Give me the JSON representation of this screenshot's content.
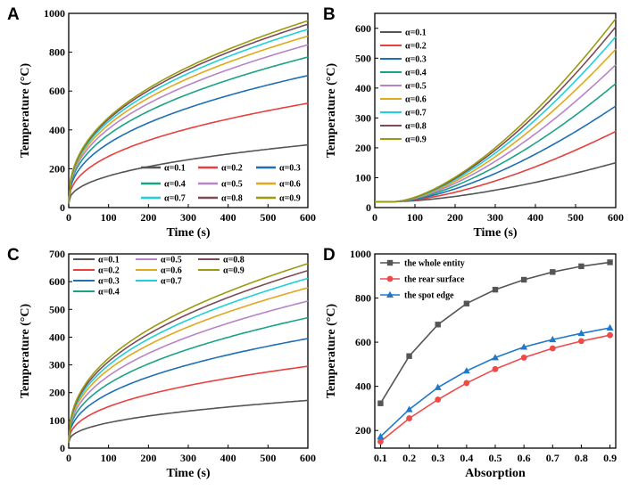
{
  "figure": {
    "panels": [
      {
        "letter": "A",
        "chart_data": {
          "type": "line",
          "xlabel": "Time (s)",
          "ylabel": "Temperature (°C)",
          "xlim": [
            0,
            600
          ],
          "ylim": [
            0,
            1000
          ],
          "xticks": [
            0,
            100,
            200,
            300,
            400,
            500,
            600
          ],
          "yticks": [
            0,
            200,
            400,
            600,
            800,
            1000
          ],
          "legend_position": "bottom-right",
          "series": [
            {
              "name": "α=0.1",
              "color": "#555555",
              "end": 323
            },
            {
              "name": "α=0.2",
              "color": "#e8403e",
              "end": 537
            },
            {
              "name": "α=0.3",
              "color": "#1f6fb5",
              "end": 680
            },
            {
              "name": "α=0.4",
              "color": "#1aa383",
              "end": 775
            },
            {
              "name": "α=0.5",
              "color": "#b784c9",
              "end": 838
            },
            {
              "name": "α=0.6",
              "color": "#e0a81c",
              "end": 883
            },
            {
              "name": "α=0.7",
              "color": "#1fd0dc",
              "end": 918
            },
            {
              "name": "α=0.8",
              "color": "#7d4b56",
              "end": 944
            },
            {
              "name": "α=0.9",
              "color": "#9b9b12",
              "end": 962
            }
          ]
        }
      },
      {
        "letter": "B",
        "chart_data": {
          "type": "line",
          "xlabel": "Time (s)",
          "ylabel": "Temperature (°C)",
          "xlim": [
            0,
            600
          ],
          "ylim": [
            0,
            650
          ],
          "xticks": [
            0,
            100,
            200,
            300,
            400,
            500,
            600
          ],
          "yticks": [
            0,
            100,
            200,
            300,
            400,
            500,
            600
          ],
          "legend_position": "top-left",
          "series": [
            {
              "name": "α=0.1",
              "color": "#555555",
              "end": 150
            },
            {
              "name": "α=0.2",
              "color": "#e8403e",
              "end": 255
            },
            {
              "name": "α=0.3",
              "color": "#1f6fb5",
              "end": 340
            },
            {
              "name": "α=0.4",
              "color": "#1aa383",
              "end": 415
            },
            {
              "name": "α=0.5",
              "color": "#b784c9",
              "end": 478
            },
            {
              "name": "α=0.6",
              "color": "#e0a81c",
              "end": 530
            },
            {
              "name": "α=0.7",
              "color": "#1fd0dc",
              "end": 572
            },
            {
              "name": "α=0.8",
              "color": "#7d4b56",
              "end": 605
            },
            {
              "name": "α=0.9",
              "color": "#9b9b12",
              "end": 632
            }
          ]
        }
      },
      {
        "letter": "C",
        "chart_data": {
          "type": "line",
          "xlabel": "Time (s)",
          "ylabel": "Temperature (°C)",
          "xlim": [
            0,
            600
          ],
          "ylim": [
            0,
            700
          ],
          "xticks": [
            0,
            100,
            200,
            300,
            400,
            500,
            600
          ],
          "yticks": [
            0,
            100,
            200,
            300,
            400,
            500,
            600,
            700
          ],
          "legend_position": "top-left",
          "series": [
            {
              "name": "α=0.1",
              "color": "#555555",
              "end": 172
            },
            {
              "name": "α=0.2",
              "color": "#e8403e",
              "end": 295
            },
            {
              "name": "α=0.3",
              "color": "#1f6fb5",
              "end": 395
            },
            {
              "name": "α=0.4",
              "color": "#1aa383",
              "end": 470
            },
            {
              "name": "α=0.5",
              "color": "#b784c9",
              "end": 530
            },
            {
              "name": "α=0.6",
              "color": "#e0a81c",
              "end": 578
            },
            {
              "name": "α=0.7",
              "color": "#1fd0dc",
              "end": 612
            },
            {
              "name": "α=0.8",
              "color": "#7d4b56",
              "end": 640
            },
            {
              "name": "α=0.9",
              "color": "#9b9b12",
              "end": 665
            }
          ]
        }
      },
      {
        "letter": "D",
        "chart_data": {
          "type": "line",
          "xlabel": "Absorption",
          "ylabel": "Temperature (°C)",
          "xlim": [
            0.08,
            0.92
          ],
          "ylim": [
            120,
            1000
          ],
          "xticks": [
            0.1,
            0.2,
            0.3,
            0.4,
            0.5,
            0.6,
            0.7,
            0.8,
            0.9
          ],
          "yticks": [
            200,
            400,
            600,
            800,
            1000
          ],
          "legend_position": "top-left",
          "x": [
            0.1,
            0.2,
            0.3,
            0.4,
            0.5,
            0.6,
            0.7,
            0.8,
            0.9
          ],
          "series": [
            {
              "name": "the whole entity",
              "color": "#555555",
              "marker": "square",
              "values": [
                323,
                537,
                680,
                775,
                838,
                883,
                918,
                944,
                962
              ]
            },
            {
              "name": "the rear surface",
              "color": "#ee4a4a",
              "marker": "circle",
              "values": [
                150,
                255,
                340,
                415,
                478,
                530,
                572,
                605,
                632
              ]
            },
            {
              "name": "the spot edge",
              "color": "#1f78c8",
              "marker": "triangle",
              "values": [
                172,
                295,
                395,
                470,
                530,
                578,
                612,
                640,
                665
              ]
            }
          ]
        }
      }
    ]
  }
}
